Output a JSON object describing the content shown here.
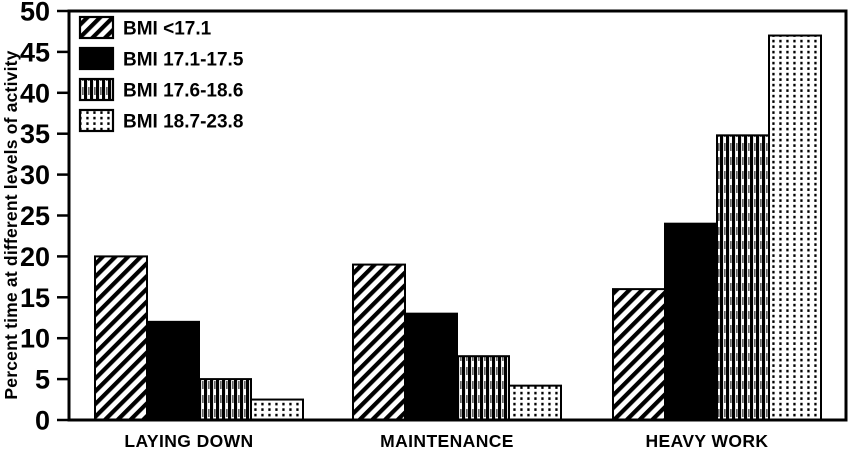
{
  "figure": {
    "background": "#ffffff",
    "ink": "#000000"
  },
  "chart_data": {
    "type": "bar",
    "title": "",
    "xlabel": "",
    "ylabel": "Percent time at different levels of activity",
    "ylim": [
      0,
      50
    ],
    "yticks": [
      0,
      5,
      10,
      15,
      20,
      25,
      30,
      35,
      40,
      45,
      50
    ],
    "grid": false,
    "legend_position": "top-left",
    "categories": [
      "LAYING DOWN",
      "MAINTENANCE",
      "HEAVY WORK"
    ],
    "series": [
      {
        "name": "BMI <17.1",
        "pattern": "diagonal-hatch",
        "values": [
          20,
          19,
          16
        ]
      },
      {
        "name": "BMI 17.1-17.5",
        "pattern": "solid-black",
        "values": [
          12,
          13,
          24
        ]
      },
      {
        "name": "BMI 17.6-18.6",
        "pattern": "vertical-lines",
        "values": [
          5,
          7.8,
          34.8
        ]
      },
      {
        "name": "BMI 18.7-23.8",
        "pattern": "dots",
        "values": [
          2.5,
          4.2,
          47
        ]
      }
    ]
  }
}
